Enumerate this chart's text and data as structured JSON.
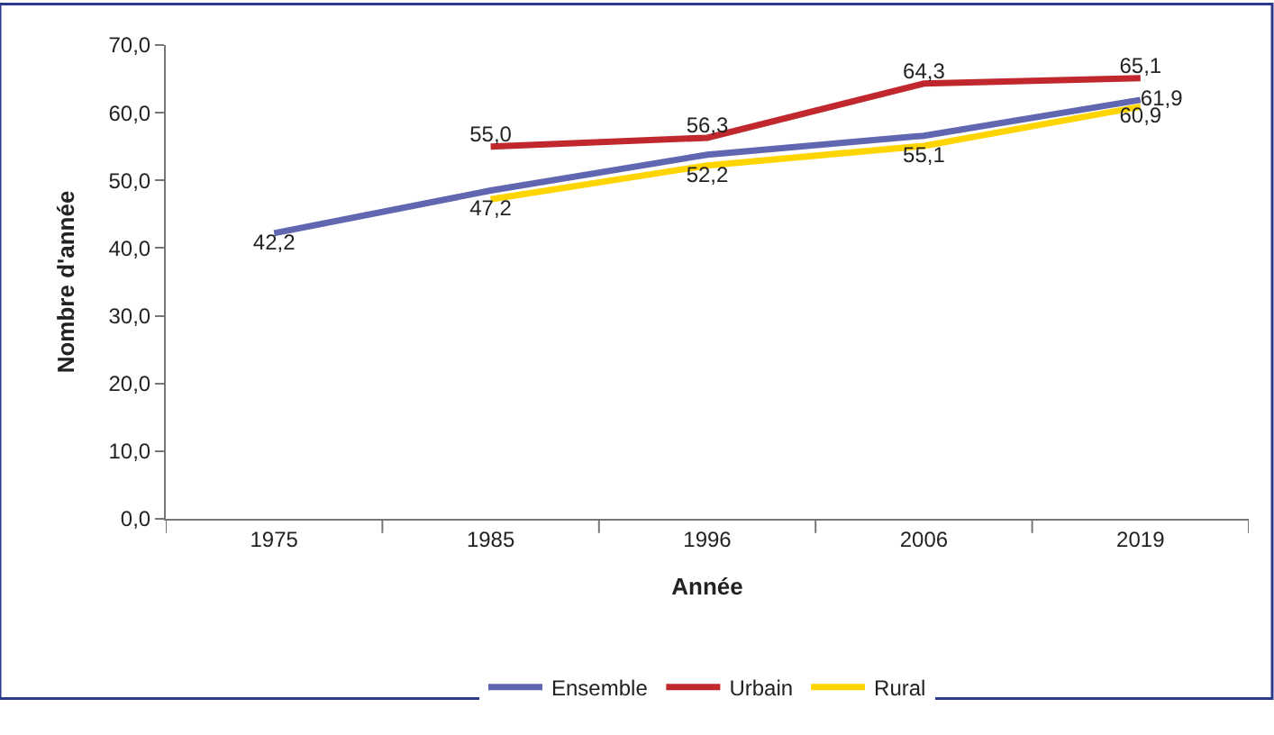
{
  "chart_data": {
    "type": "line",
    "xlabel": "Année",
    "ylabel": "Nombre d'année",
    "categories": [
      "1975",
      "1985",
      "1996",
      "2006",
      "2019"
    ],
    "series": [
      {
        "name": "Ensemble",
        "color": "#6066b0",
        "values": [
          42.2,
          48.5,
          53.8,
          56.6,
          61.9
        ],
        "value_labels": [
          "42,2",
          null,
          null,
          null,
          "61,9"
        ]
      },
      {
        "name": "Urbain",
        "color": "#c0282d",
        "values": [
          null,
          55.0,
          56.3,
          64.3,
          65.1
        ],
        "value_labels": [
          null,
          "55,0",
          "56,3",
          "64,3",
          "65,1"
        ]
      },
      {
        "name": "Rural",
        "color": "#ffd500",
        "values": [
          null,
          47.2,
          52.2,
          55.1,
          60.9
        ],
        "value_labels": [
          null,
          "47,2",
          "52,2",
          "55,1",
          "60,9"
        ]
      }
    ],
    "ylim": [
      0,
      70
    ],
    "yticks": [
      {
        "value": 0,
        "label": "0,0"
      },
      {
        "value": 10,
        "label": "10,0"
      },
      {
        "value": 20,
        "label": "20,0"
      },
      {
        "value": 30,
        "label": "30,0"
      },
      {
        "value": 40,
        "label": "40,0"
      },
      {
        "value": 50,
        "label": "50,0"
      },
      {
        "value": 60,
        "label": "60,0"
      },
      {
        "value": 70,
        "label": "70,0"
      }
    ],
    "legend": "bottom",
    "marker": "none",
    "line_style": "solid"
  }
}
